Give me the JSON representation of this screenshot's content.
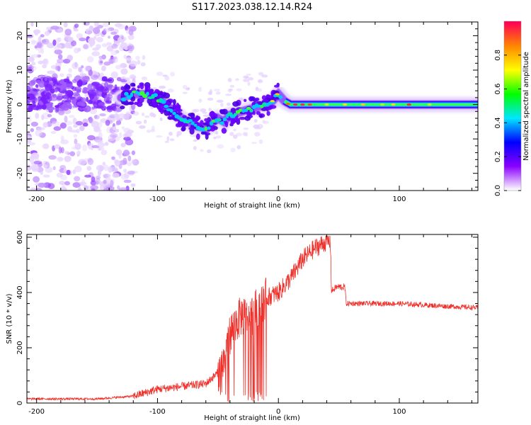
{
  "title": "S117.2023.038.12.14.R24",
  "chart_data": [
    {
      "type": "heatmap",
      "xlabel": "Height of straight line (km)",
      "ylabel": "Frequency (Hz)",
      "xlim": [
        -208,
        165
      ],
      "ylim": [
        -25,
        24
      ],
      "xticks": [
        -200,
        -100,
        0,
        100
      ],
      "yticks": [
        -20,
        -10,
        0,
        10,
        20
      ],
      "colorbar": {
        "label": "Normalized spectral amplitude",
        "range": [
          0,
          1
        ],
        "ticks": [
          "0.0",
          "0.2",
          "0.4",
          "0.6",
          "0.8"
        ],
        "colors": [
          "#ffffff",
          "#8a00ff",
          "#0000ff",
          "#00e6ff",
          "#00ff00",
          "#ffff00",
          "#ff8800",
          "#ff0055"
        ]
      },
      "ridge": {
        "x": [
          -130,
          -120,
          -110,
          -100,
          -90,
          -80,
          -70,
          -60,
          -50,
          -45,
          -40,
          -30,
          -20,
          -10,
          -5,
          0,
          5,
          10,
          20,
          40,
          60,
          80,
          100,
          120,
          140,
          165
        ],
        "y": [
          2,
          3,
          3,
          2,
          -1,
          -4,
          -6,
          -7,
          -4,
          -5,
          -3,
          -2,
          -1,
          0,
          1,
          3,
          1,
          0,
          0,
          0,
          0,
          0,
          0,
          0,
          0,
          0
        ]
      }
    },
    {
      "type": "line",
      "xlabel": "Height of straight line (km)",
      "ylabel": "SNR (10 * v/v)",
      "xlim": [
        -208,
        165
      ],
      "ylim": [
        0,
        610
      ],
      "xticks": [
        -200,
        -100,
        0,
        100
      ],
      "yticks": [
        0,
        200,
        400,
        600
      ],
      "color": "#f0302a",
      "envelope": {
        "x": [
          -208,
          -150,
          -120,
          -100,
          -80,
          -60,
          -50,
          -45,
          -40,
          -35,
          -30,
          -25,
          -20,
          -15,
          -10,
          0,
          10,
          20,
          30,
          40,
          43,
          44,
          48,
          55,
          56,
          60,
          80,
          100,
          120,
          140,
          165
        ],
        "y": [
          15,
          15,
          25,
          50,
          60,
          70,
          110,
          150,
          250,
          290,
          320,
          300,
          330,
          360,
          380,
          400,
          450,
          520,
          560,
          585,
          585,
          405,
          420,
          420,
          360,
          360,
          360,
          360,
          355,
          350,
          345
        ]
      }
    }
  ]
}
